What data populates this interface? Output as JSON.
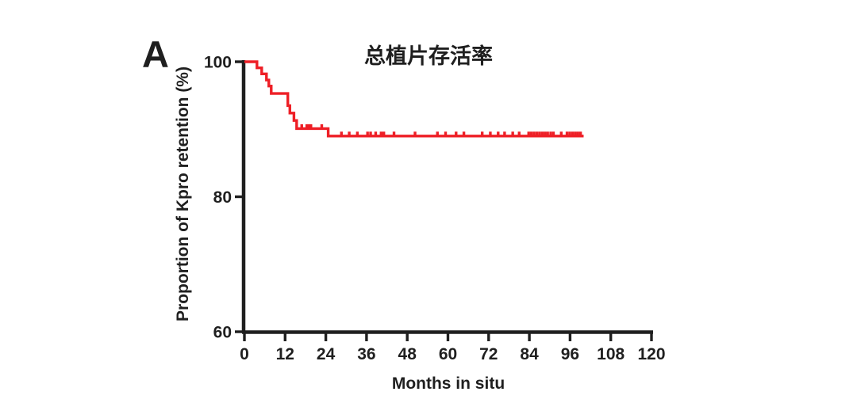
{
  "figure": {
    "panel_label": "A",
    "background": "#ffffff",
    "axis_color": "#1f1f1f"
  },
  "chart_data": {
    "type": "line",
    "subtype": "kaplan-meier-step",
    "title": "总植片存活率",
    "xlabel": "Months in situ",
    "ylabel": "Proportion of Kpro retention (%)",
    "xlim": [
      0,
      120
    ],
    "ylim": [
      60,
      100
    ],
    "x_ticks": [
      0,
      12,
      24,
      36,
      48,
      60,
      72,
      84,
      96,
      108,
      120
    ],
    "y_ticks": [
      60,
      80,
      100
    ],
    "grid": false,
    "legend_position": "none",
    "series": [
      {
        "name": "Kpro retention",
        "color": "#ee1f26",
        "end_month": 100,
        "steps": [
          {
            "month": 0,
            "percent": 100
          },
          {
            "month": 3.7,
            "percent": 99.1
          },
          {
            "month": 5.1,
            "percent": 98.2
          },
          {
            "month": 6.5,
            "percent": 97.3
          },
          {
            "month": 7.2,
            "percent": 96.4
          },
          {
            "month": 7.9,
            "percent": 95.3
          },
          {
            "month": 12.8,
            "percent": 93.5
          },
          {
            "month": 13.4,
            "percent": 92.4
          },
          {
            "month": 14.6,
            "percent": 91.3
          },
          {
            "month": 15.4,
            "percent": 90.1
          },
          {
            "month": 24.7,
            "percent": 89.0
          }
        ],
        "censor_months": [
          16.9,
          18.4,
          19.0,
          19.6,
          22.8,
          28.6,
          30.9,
          33.3,
          36.3,
          37.2,
          38.7,
          40.3,
          41.1,
          44.1,
          50.3,
          56.9,
          59.3,
          62.4,
          64.7,
          70.1,
          72.5,
          74.8,
          76.7,
          79.1,
          81.0,
          83.8,
          84.6,
          85.4,
          86.2,
          87.0,
          87.8,
          88.6,
          89.4,
          90.3,
          91.1,
          93.4,
          95.1,
          95.9,
          96.7,
          97.5,
          98.3,
          99.1
        ]
      }
    ]
  }
}
